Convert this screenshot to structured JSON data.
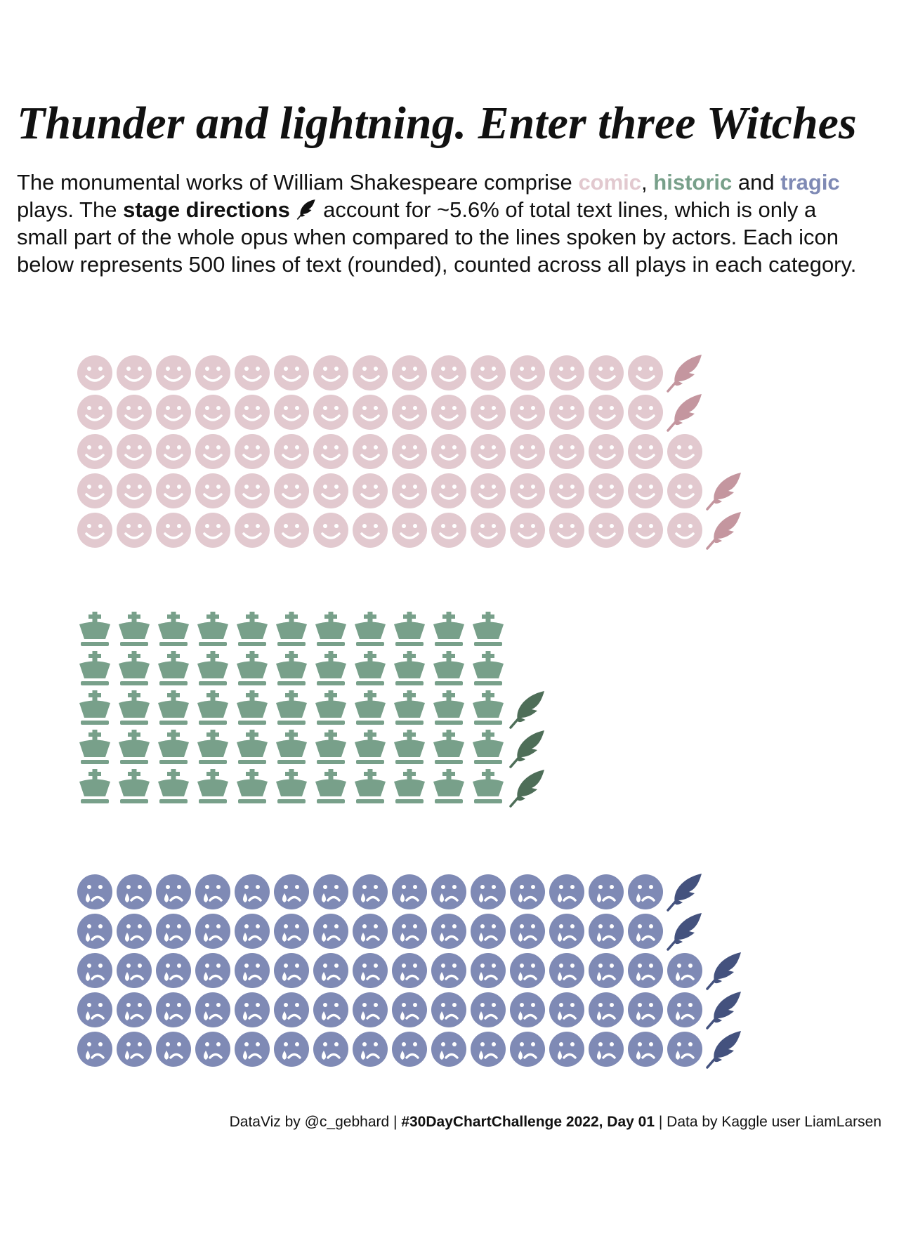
{
  "title": "Thunder and lightning. Enter three Witches",
  "subtitle": {
    "intro": "The monumental works of William Shakespeare comprise",
    "sep1": ",",
    "sep2": "and",
    "after_tragic": "plays. The",
    "highlight": "stage directions",
    "rest": "account for ~5.6% of total text lines, which is only a small part of the whole opus when compared to the lines spoken by actors. Each icon below represents 500 lines of text (rounded), counted across all plays in each category."
  },
  "caption": {
    "before": "DataViz by @c_gebhard |",
    "bold": "#30DayChartChallenge 2022, Day 01",
    "after": "| Data by Kaggle user LiamLarsen"
  },
  "chart_data": {
    "type": "waffle",
    "categories": [
      "comic",
      "historic",
      "tragic"
    ],
    "groups": [
      {
        "icon": "smile",
        "color": "#e2c9cf",
        "stage_color": "#c4969f",
        "lines_icons": 78,
        "stage_icons": 4
      },
      {
        "icon": "crown",
        "color": "#78a08a",
        "stage_color": "#4e6e58",
        "lines_icons": 55,
        "stage_icons": 3
      },
      {
        "icon": "sad",
        "color": "#7f8ab5",
        "stage_color": "#44527e",
        "lines_icons": 78,
        "stage_icons": 5
      }
    ]
  }
}
